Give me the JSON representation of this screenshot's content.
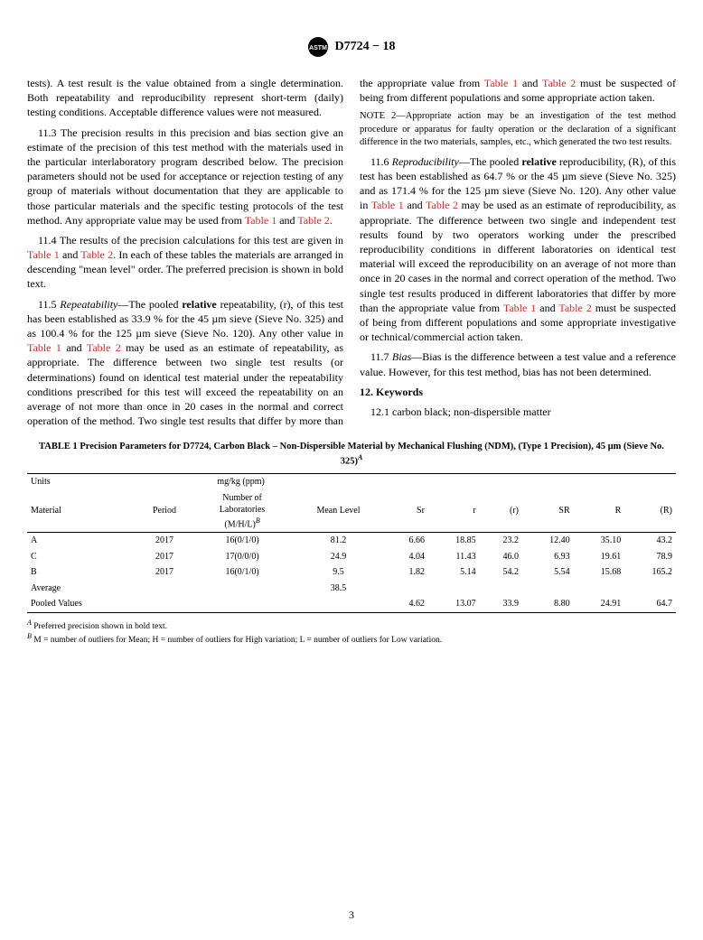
{
  "header": {
    "designation": "D7724 − 18"
  },
  "body": {
    "p_11_2b": "tests). A test result is the value obtained from a single determination. Both repeatability and reproducibility represent short-term (daily) testing conditions. Acceptable difference values were not measured.",
    "p_11_3a": "11.3 The precision results in this precision and bias section give an estimate of the precision of this test method with the materials used in the particular interlaboratory program described below. The precision parameters should not be used for acceptance or rejection testing of any group of materials without documentation that they are applicable to those particular materials and the specific testing protocols of the test method. Any appropriate value may be used from ",
    "ref_t1": "Table 1",
    "and": " and ",
    "ref_t2": "Table 2",
    "p_11_3b": ".",
    "p_11_4a": "11.4 The results of the precision calculations for this test are given in ",
    "p_11_4b": ". In each of these tables the materials are arranged in descending \"mean level\" order. The preferred precision is shown in bold text.",
    "p_11_5_lead": "11.5 ",
    "p_11_5_head": "Repeatability",
    "p_11_5a": "—The pooled ",
    "p_11_5_rel": "relative",
    "p_11_5b": " repeatability, (r), of this test has been established as 33.9 % for the 45 µm sieve (Sieve No. 325) and as 100.4 % for the 125 µm sieve (Sieve No. 120). Any other value in ",
    "p_11_5c": " may be used as an estimate of repeatability, as appropriate. The difference between two single test results (or determinations) found on identical test material under the repeatability conditions prescribed for this test will exceed the repeatability on an average of not more than once in 20 cases in the normal and correct operation of the method. Two single test results that differ by more than the appropriate value from ",
    "p_11_5d": " must be suspected of being from different populations and some appropriate action taken.",
    "note2_lead": "NOTE 2—",
    "note2": "Appropriate action may be an investigation of the test method procedure or apparatus for faulty operation or the declaration of a significant difference in the two materials, samples, etc., which generated the two test results.",
    "p_11_6_lead": "11.6 ",
    "p_11_6_head": "Reproducibility",
    "p_11_6a": "—The pooled ",
    "p_11_6b": " reproducibility, (R), of this test has been established as 64.7 % or the 45 µm sieve (Sieve No. 325) and as 171.4 % for the 125 µm sieve (Sieve No. 120). Any other value in ",
    "p_11_6c": " may be used as an estimate of reproducibility, as appropriate. The difference between two single and independent test results found by two operators working under the prescribed reproducibility conditions in different laboratories on identical test material will exceed the reproducibility on an average of not more than once in 20 cases in the normal and correct operation of the method. Two single test results produced in different laboratories that differ by more than the appropriate value from ",
    "p_11_6d": " must be suspected of being from different populations and some appropriate investigative or technical/commercial action taken.",
    "p_11_7_lead": "11.7 ",
    "p_11_7_head": "Bias",
    "p_11_7": "—Bias is the difference between a test value and a reference value. However, for this test method, bias has not been determined.",
    "sec12": "12.  Keywords",
    "p_12_1": "12.1 carbon black; non-dispersible matter"
  },
  "table1": {
    "title": "TABLE 1 Precision Parameters for D7724, Carbon Black – Non-Dispersible Material by Mechanical Flushing (NDM), (Type 1 Precision), 45 µm (Sieve No. 325)",
    "title_sup": "A",
    "units_label": "Units",
    "units_value": "mg/kg (ppm)",
    "columns": [
      "Material",
      "Period",
      "Number of Laboratories (M/H/L)",
      "Mean Level",
      "Sr",
      "r",
      "(r)",
      "SR",
      "R",
      "(R)"
    ],
    "col_sup_B": "B",
    "rows": [
      [
        "A",
        "2017",
        "16(0/1/0)",
        "81.2",
        "6.66",
        "18.85",
        "23.2",
        "12.40",
        "35.10",
        "43.2"
      ],
      [
        "C",
        "2017",
        "17(0/0/0)",
        "24.9",
        "4.04",
        "11.43",
        "46.0",
        "6.93",
        "19.61",
        "78.9"
      ],
      [
        "B",
        "2017",
        "16(0/1/0)",
        "9.5",
        "1.82",
        "5.14",
        "54.2",
        "5.54",
        "15.68",
        "165.2"
      ],
      [
        "Average",
        "",
        "",
        "38.5",
        "",
        "",
        "",
        "",
        "",
        ""
      ],
      [
        "Pooled Values",
        "",
        "",
        "",
        "4.62",
        "13.07",
        "33.9",
        "8.80",
        "24.91",
        "64.7"
      ]
    ],
    "bold_cols": [
      6,
      9
    ],
    "footnotes": [
      {
        "sup": "A",
        "text": " Preferred precision shown in bold text."
      },
      {
        "sup": "B",
        "text": " M = number of outliers for Mean; H = number of outliers for High variation; L = number of outliers for Low variation."
      }
    ]
  },
  "pagenum": "3",
  "style": {
    "body_fontsize": 12,
    "table_fontsize": 10,
    "ref_color": "#d42c2c",
    "text_color": "#000000",
    "bg_color": "#ffffff"
  }
}
